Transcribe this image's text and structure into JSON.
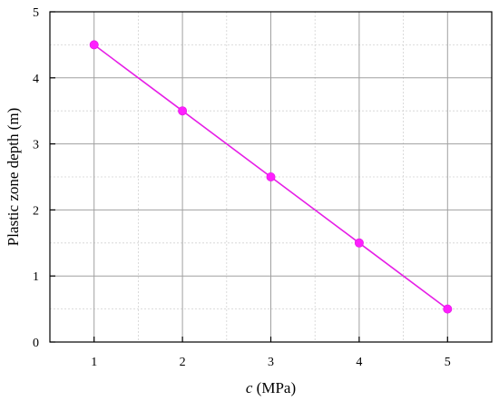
{
  "chart_data": {
    "type": "line",
    "xlabel_var": "c",
    "xlabel_unit": " (MPa)",
    "ylabel": "Plastic zone depth (m)",
    "x": [
      1,
      2,
      3,
      4,
      5
    ],
    "series": [
      {
        "values": [
          4.5,
          3.5,
          2.5,
          1.5,
          0.5
        ]
      }
    ],
    "xlim": [
      0.5,
      5.5
    ],
    "ylim": [
      0,
      5
    ],
    "xticks": [
      1,
      2,
      3,
      4,
      5
    ],
    "yticks": [
      0,
      1,
      2,
      3,
      4,
      5
    ],
    "major_grid": true,
    "minor_grid": true,
    "line_color": "#E61EE6",
    "marker_color": "#FF1EFF",
    "grid_color": "#A0A0A0",
    "minor_grid_color": "#D2D2D2"
  }
}
